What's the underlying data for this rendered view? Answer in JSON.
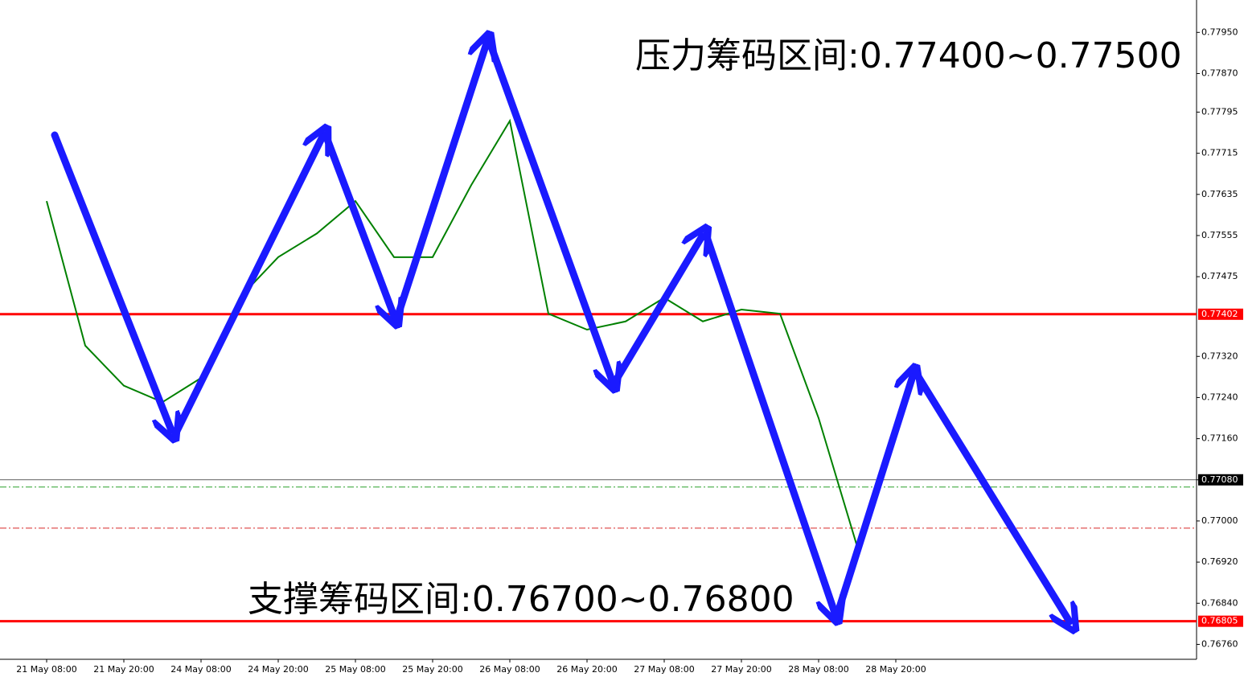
{
  "chart_data": {
    "type": "line",
    "categories": [
      "21 May 08:00",
      null,
      "21 May 20:00",
      null,
      "24 May 08:00",
      null,
      "24 May 20:00",
      null,
      "25 May 08:00",
      null,
      "25 May 20:00",
      null,
      "26 May 08:00",
      null,
      "26 May 20:00",
      null,
      "27 May 08:00",
      null,
      "27 May 20:00",
      null,
      "28 May 08:00",
      null,
      "28 May 20:00"
    ],
    "values": [
      0.77622,
      0.77341,
      0.77263,
      0.77231,
      0.77278,
      0.77434,
      0.77513,
      0.77559,
      0.77622,
      0.77513,
      0.77513,
      0.77653,
      0.77778,
      0.77403,
      0.77372,
      0.77388,
      0.77434,
      0.77388,
      0.77411,
      0.77403,
      0.772,
      0.7695,
      null
    ],
    "color": "#008000",
    "ylim": [
      0.76731,
      0.78013
    ],
    "yticks": [
      {
        "value": 0.7795,
        "label": "0.77950"
      },
      {
        "value": 0.7787,
        "label": "0.77870"
      },
      0.77795,
      0.77715,
      0.77635,
      0.77555,
      0.77475,
      {
        "value": 0.7732,
        "label": "0.77320"
      },
      {
        "value": 0.7724,
        "label": "0.77240"
      },
      {
        "value": 0.7716,
        "label": "0.77160"
      },
      {
        "value": 0.7708,
        "label": "0.77080"
      },
      {
        "value": 0.77,
        "label": "0.77000"
      },
      {
        "value": 0.7692,
        "label": "0.76920"
      },
      {
        "value": 0.7684,
        "label": "0.76840"
      },
      {
        "value": 0.7676,
        "label": "0.76760"
      }
    ],
    "levels": [
      {
        "value": 0.77402,
        "color": "#ff0000"
      },
      {
        "value": 0.7708,
        "label": "0.77080",
        "color": "#000000"
      },
      {
        "value": 0.76805,
        "color": "#ff0000"
      }
    ],
    "dashed_levels": [
      {
        "value": 0.77066,
        "color": "#2ca02c"
      },
      {
        "value": 0.76986,
        "color": "#d62728"
      }
    ],
    "annotations": [
      "压力筹码区间:0.77400~0.77500",
      "支撑筹码区间:0.76700~0.76800"
    ]
  }
}
